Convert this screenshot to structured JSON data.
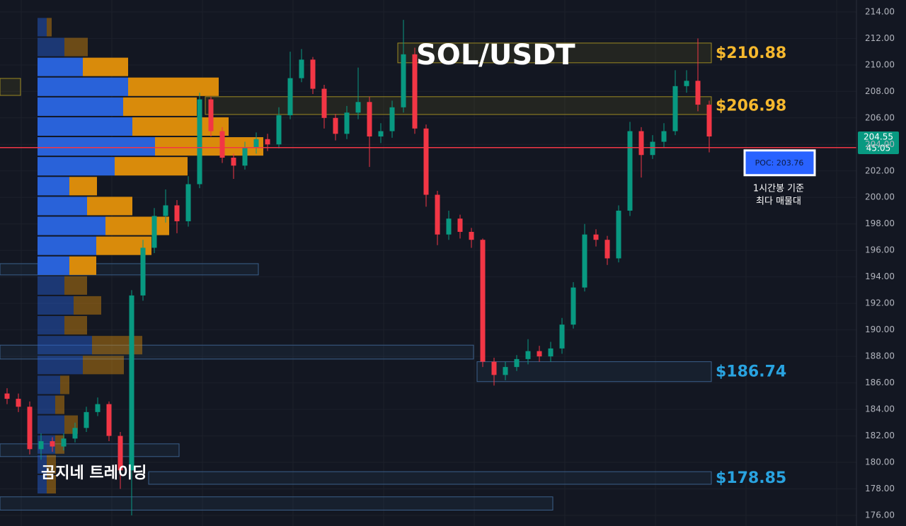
{
  "chart_data": {
    "type": "candlestick",
    "title": "SOL/USDT",
    "watermark": "곰지네 트레이딩",
    "up_color": "#089981",
    "down_color": "#f23645",
    "grid": true,
    "ylim": [
      175.2,
      214.9
    ],
    "yticks": [
      {
        "value": 176,
        "label": "176.00"
      },
      {
        "value": 178,
        "label": "178.00"
      },
      {
        "value": 180,
        "label": "180.00"
      },
      {
        "value": 182,
        "label": "182.00"
      },
      {
        "value": 184,
        "label": "184.00"
      },
      {
        "value": 186,
        "label": "186.00"
      },
      {
        "value": 188,
        "label": "188.00"
      },
      {
        "value": 190,
        "label": "190.00"
      },
      {
        "value": 192,
        "label": "192.00"
      },
      {
        "value": 194,
        "label": "194.00"
      },
      {
        "value": 196,
        "label": "196.00"
      },
      {
        "value": 198,
        "label": "198.00"
      },
      {
        "value": 200,
        "label": "200.00"
      },
      {
        "value": 202,
        "label": "202.00"
      },
      {
        "value": 204,
        "label": "204.00"
      },
      {
        "value": 206,
        "label": "206.00"
      },
      {
        "value": 208,
        "label": "208.00"
      },
      {
        "value": 210,
        "label": "210.00"
      },
      {
        "value": 212,
        "label": "212.00"
      },
      {
        "value": 214,
        "label": "214.00"
      }
    ],
    "open": [
      185.2,
      184.8,
      184.2,
      181.0,
      181.6,
      181.2,
      181.8,
      182.6,
      183.8,
      184.4,
      182.0,
      179.4,
      192.6,
      196.2,
      198.6,
      199.4,
      198.2,
      201.0,
      207.4,
      205.0,
      203.0,
      202.4,
      203.8,
      204.4,
      204.0,
      206.2,
      209.0,
      210.4,
      208.2,
      206.0,
      204.8,
      206.4,
      207.2,
      204.6,
      205.0,
      206.8,
      210.8,
      205.2,
      200.2,
      197.2,
      198.4,
      197.4,
      196.8,
      187.6,
      186.6,
      187.2,
      187.8,
      188.4,
      188.0,
      188.6,
      190.4,
      193.2,
      197.2,
      196.8,
      195.4,
      199.0,
      205.0,
      203.2,
      204.2,
      205.0,
      208.4,
      208.8,
      207.0
    ],
    "high": [
      185.6,
      185.2,
      184.6,
      182.2,
      181.9,
      182.2,
      183.0,
      184.2,
      184.9,
      184.6,
      182.3,
      193.0,
      196.8,
      199.2,
      200.6,
      199.8,
      201.6,
      207.9,
      207.6,
      205.3,
      203.3,
      204.2,
      204.9,
      204.8,
      206.8,
      211.0,
      211.2,
      210.6,
      208.5,
      206.3,
      206.9,
      209.8,
      207.6,
      205.6,
      207.3,
      213.4,
      211.3,
      205.5,
      200.5,
      199.0,
      198.7,
      197.7,
      196.9,
      187.9,
      187.6,
      188.1,
      189.3,
      188.8,
      189.1,
      190.9,
      193.6,
      198.0,
      197.6,
      197.1,
      199.4,
      205.7,
      205.3,
      204.7,
      205.6,
      209.6,
      209.6,
      212.0,
      207.3
    ],
    "low": [
      184.4,
      183.8,
      180.6,
      180.2,
      180.8,
      180.9,
      181.5,
      182.3,
      183.5,
      181.6,
      178.0,
      176.0,
      192.2,
      195.8,
      198.1,
      197.3,
      197.8,
      200.7,
      204.6,
      202.6,
      201.4,
      202.1,
      203.3,
      203.5,
      203.7,
      205.9,
      208.7,
      207.8,
      205.2,
      204.3,
      204.4,
      205.9,
      202.3,
      204.1,
      204.5,
      206.4,
      204.8,
      199.3,
      196.4,
      196.8,
      196.9,
      196.2,
      187.2,
      185.8,
      186.2,
      186.9,
      187.4,
      187.6,
      187.6,
      188.2,
      190.1,
      192.9,
      196.3,
      194.9,
      195.1,
      198.6,
      201.5,
      202.9,
      203.8,
      204.7,
      207.9,
      206.5,
      203.4
    ],
    "close": [
      184.8,
      184.2,
      181.0,
      181.6,
      181.2,
      181.8,
      182.6,
      183.8,
      184.4,
      182.0,
      179.4,
      192.6,
      196.2,
      198.6,
      199.4,
      198.2,
      201.0,
      207.4,
      205.0,
      203.0,
      202.4,
      203.8,
      204.4,
      204.0,
      206.2,
      209.0,
      210.4,
      208.2,
      206.0,
      204.8,
      206.4,
      207.2,
      204.6,
      205.0,
      206.8,
      210.8,
      205.2,
      200.2,
      197.2,
      198.4,
      197.4,
      196.8,
      187.6,
      186.6,
      187.2,
      187.8,
      188.4,
      188.0,
      188.6,
      190.4,
      193.2,
      197.2,
      196.8,
      195.4,
      199.0,
      205.0,
      203.2,
      204.2,
      205.0,
      208.4,
      208.8,
      207.0,
      204.6
    ],
    "volume_profile": {
      "bins": [
        213.6,
        212.1,
        210.6,
        209.1,
        207.6,
        206.1,
        204.6,
        203.1,
        201.6,
        200.1,
        198.6,
        197.1,
        195.6,
        194.1,
        192.6,
        191.1,
        189.6,
        188.1,
        186.6,
        185.1,
        183.6,
        182.1,
        180.6,
        179.1,
        177.6
      ],
      "buy": [
        13,
        38,
        64,
        128,
        121,
        134,
        166,
        109,
        45,
        70,
        96,
        83,
        45,
        38,
        51,
        38,
        77,
        64,
        32,
        25,
        38,
        25,
        13,
        13
      ],
      "sell": [
        7,
        33,
        64,
        128,
        104,
        136,
        153,
        103,
        39,
        64,
        90,
        78,
        38,
        32,
        39,
        32,
        71,
        58,
        13,
        13,
        19,
        13,
        13,
        13
      ],
      "buy_color": "#2962d9",
      "sell_color": "#d98b0b",
      "value_area": [
        194.1,
        210.6
      ]
    },
    "poc": {
      "value": 203.76,
      "label": "POC: 203.76",
      "color": "#f23645"
    },
    "poc_note": [
      "1시간봉 기준",
      "최다 매물대"
    ],
    "last_price": 204.55,
    "countdown": "45:05",
    "zones": [
      {
        "low": 210.16,
        "high": 211.65,
        "start": 35,
        "end": 62,
        "color": "#9c8a22",
        "label": "$210.88",
        "label_color": "#f5b82e"
      },
      {
        "low": 206.26,
        "high": 207.6,
        "start": 18,
        "end": 62,
        "color": "#9c8a22",
        "label": "$206.98",
        "label_color": "#f5b82e"
      },
      {
        "low": 207.7,
        "high": 208.98,
        "start": 0,
        "end": 1,
        "color": "#9c8a22"
      },
      {
        "low": 194.15,
        "high": 195.0,
        "start": 0,
        "end": 22,
        "color": "#3b5f8a"
      },
      {
        "low": 187.8,
        "high": 188.85,
        "start": 0,
        "end": 41,
        "color": "#3b5f8a"
      },
      {
        "low": 186.1,
        "high": 187.6,
        "start": 42,
        "end": 62,
        "color": "#3b5f8a",
        "label": "$186.74",
        "label_color": "#29a3e0"
      },
      {
        "low": 180.44,
        "high": 181.4,
        "start": 0,
        "end": 15,
        "color": "#3b5f8a"
      },
      {
        "low": 178.35,
        "high": 179.3,
        "start": 13,
        "end": 62,
        "color": "#3b5f8a",
        "label": "$178.85",
        "label_color": "#29a3e0"
      },
      {
        "low": 176.4,
        "high": 177.4,
        "start": 0,
        "end": 48,
        "color": "#3b5f8a"
      }
    ]
  }
}
